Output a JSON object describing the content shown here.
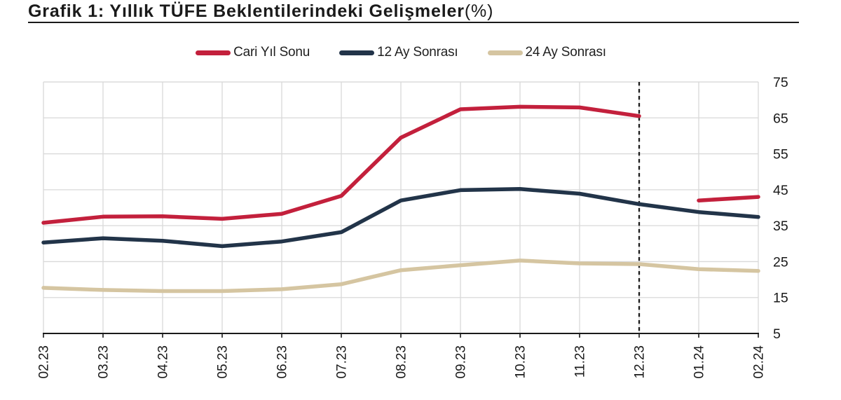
{
  "title": {
    "text": "Grafik 1: Yıllık TÜFE Beklentilerindeki Gelişmeler",
    "suffix": "(%)"
  },
  "chart_data": {
    "type": "line",
    "title": "Grafik 1: Yıllık TÜFE Beklentilerindeki Gelişmeler (%)",
    "unit": "%",
    "categories": [
      "02.23",
      "03.23",
      "04.23",
      "05.23",
      "06.23",
      "07.23",
      "08.23",
      "09.23",
      "10.23",
      "11.23",
      "12.23",
      "01.24",
      "02.24"
    ],
    "series": [
      {
        "name": "Cari Yıl Sonu",
        "color": "#c3203c",
        "values": [
          35.8,
          37.5,
          37.6,
          36.9,
          38.3,
          43.3,
          59.5,
          67.4,
          68.1,
          67.9,
          65.5,
          42.0,
          43.0
        ],
        "break_after": "12.23"
      },
      {
        "name": "12 Ay Sonrası",
        "color": "#223449",
        "values": [
          30.3,
          31.5,
          30.8,
          29.3,
          30.6,
          33.2,
          42.0,
          44.9,
          45.2,
          43.9,
          41.0,
          38.8,
          37.4
        ]
      },
      {
        "name": "24 Ay Sonrası",
        "color": "#d5c5a1",
        "values": [
          17.7,
          17.1,
          16.8,
          16.8,
          17.3,
          18.7,
          22.6,
          24.0,
          25.3,
          24.5,
          24.3,
          22.9,
          22.4
        ]
      }
    ],
    "y_ticks": [
      5,
      15,
      25,
      35,
      45,
      55,
      65,
      75
    ],
    "ylim": [
      5,
      75
    ],
    "y_axis_side": "right",
    "x_label_rotation": -90,
    "grid": true,
    "legend_position": "top",
    "vline": {
      "category": "12.23",
      "style": "dashed",
      "color": "#1a1a1a"
    },
    "colors": {
      "grid": "#d9d9d9",
      "axis": "#1a1a1a",
      "background": "#ffffff"
    }
  }
}
